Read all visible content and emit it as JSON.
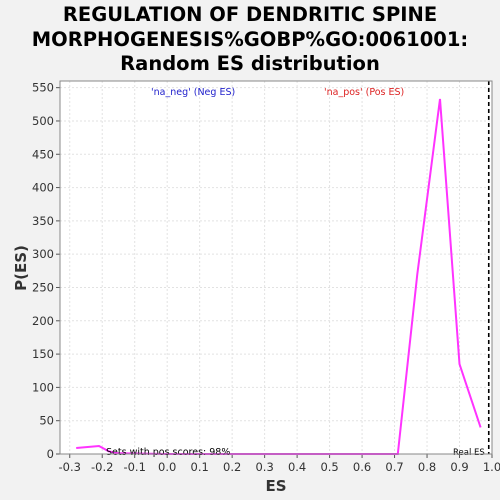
{
  "chart_data": {
    "type": "line",
    "title_lines": [
      "REGULATION OF DENDRITIC SPINE",
      "MORPHOGENESIS%GOBP%GO:0061001:",
      "Random ES distribution"
    ],
    "xlabel": "ES",
    "ylabel": "P(ES)",
    "xlim": [
      -0.33,
      1.0
    ],
    "ylim": [
      0,
      560
    ],
    "x_ticks": [
      -0.3,
      -0.2,
      -0.1,
      0.0,
      0.1,
      0.2,
      0.3,
      0.4,
      0.5,
      0.6,
      0.7,
      0.8,
      0.9,
      1.0
    ],
    "x_tick_labels": [
      "-0.3",
      "-0.2",
      "-0.1",
      "0.0",
      "0.1",
      "0.2",
      "0.3",
      "0.4",
      "0.5",
      "0.6",
      "0.7",
      "0.8",
      "0.9",
      "1.0"
    ],
    "y_ticks": [
      0,
      50,
      100,
      150,
      200,
      250,
      300,
      350,
      400,
      450,
      500,
      550
    ],
    "y_tick_labels": [
      "0",
      "50",
      "100",
      "150",
      "200",
      "250",
      "300",
      "350",
      "400",
      "450",
      "500",
      "550"
    ],
    "grid": true,
    "series": [
      {
        "color": "#ff33ff",
        "x": [
          -0.28,
          -0.21,
          -0.18,
          -0.15,
          0.0,
          0.3,
          0.6,
          0.71,
          0.77,
          0.84,
          0.9,
          0.965
        ],
        "y": [
          9,
          12,
          4,
          1,
          0,
          0,
          0,
          0,
          270,
          533,
          135,
          40
        ]
      }
    ],
    "real_es": {
      "x": 0.99,
      "label": "Real ES"
    },
    "annotations": {
      "neg": "'na_neg' (Neg ES)",
      "pos": "'na_pos' (Pos ES)",
      "pos_scores": "Sets with pos scores: 98%"
    },
    "colors": {
      "neg": "#2222cc",
      "pos": "#dd2222",
      "curve": "#ff33ff"
    }
  }
}
